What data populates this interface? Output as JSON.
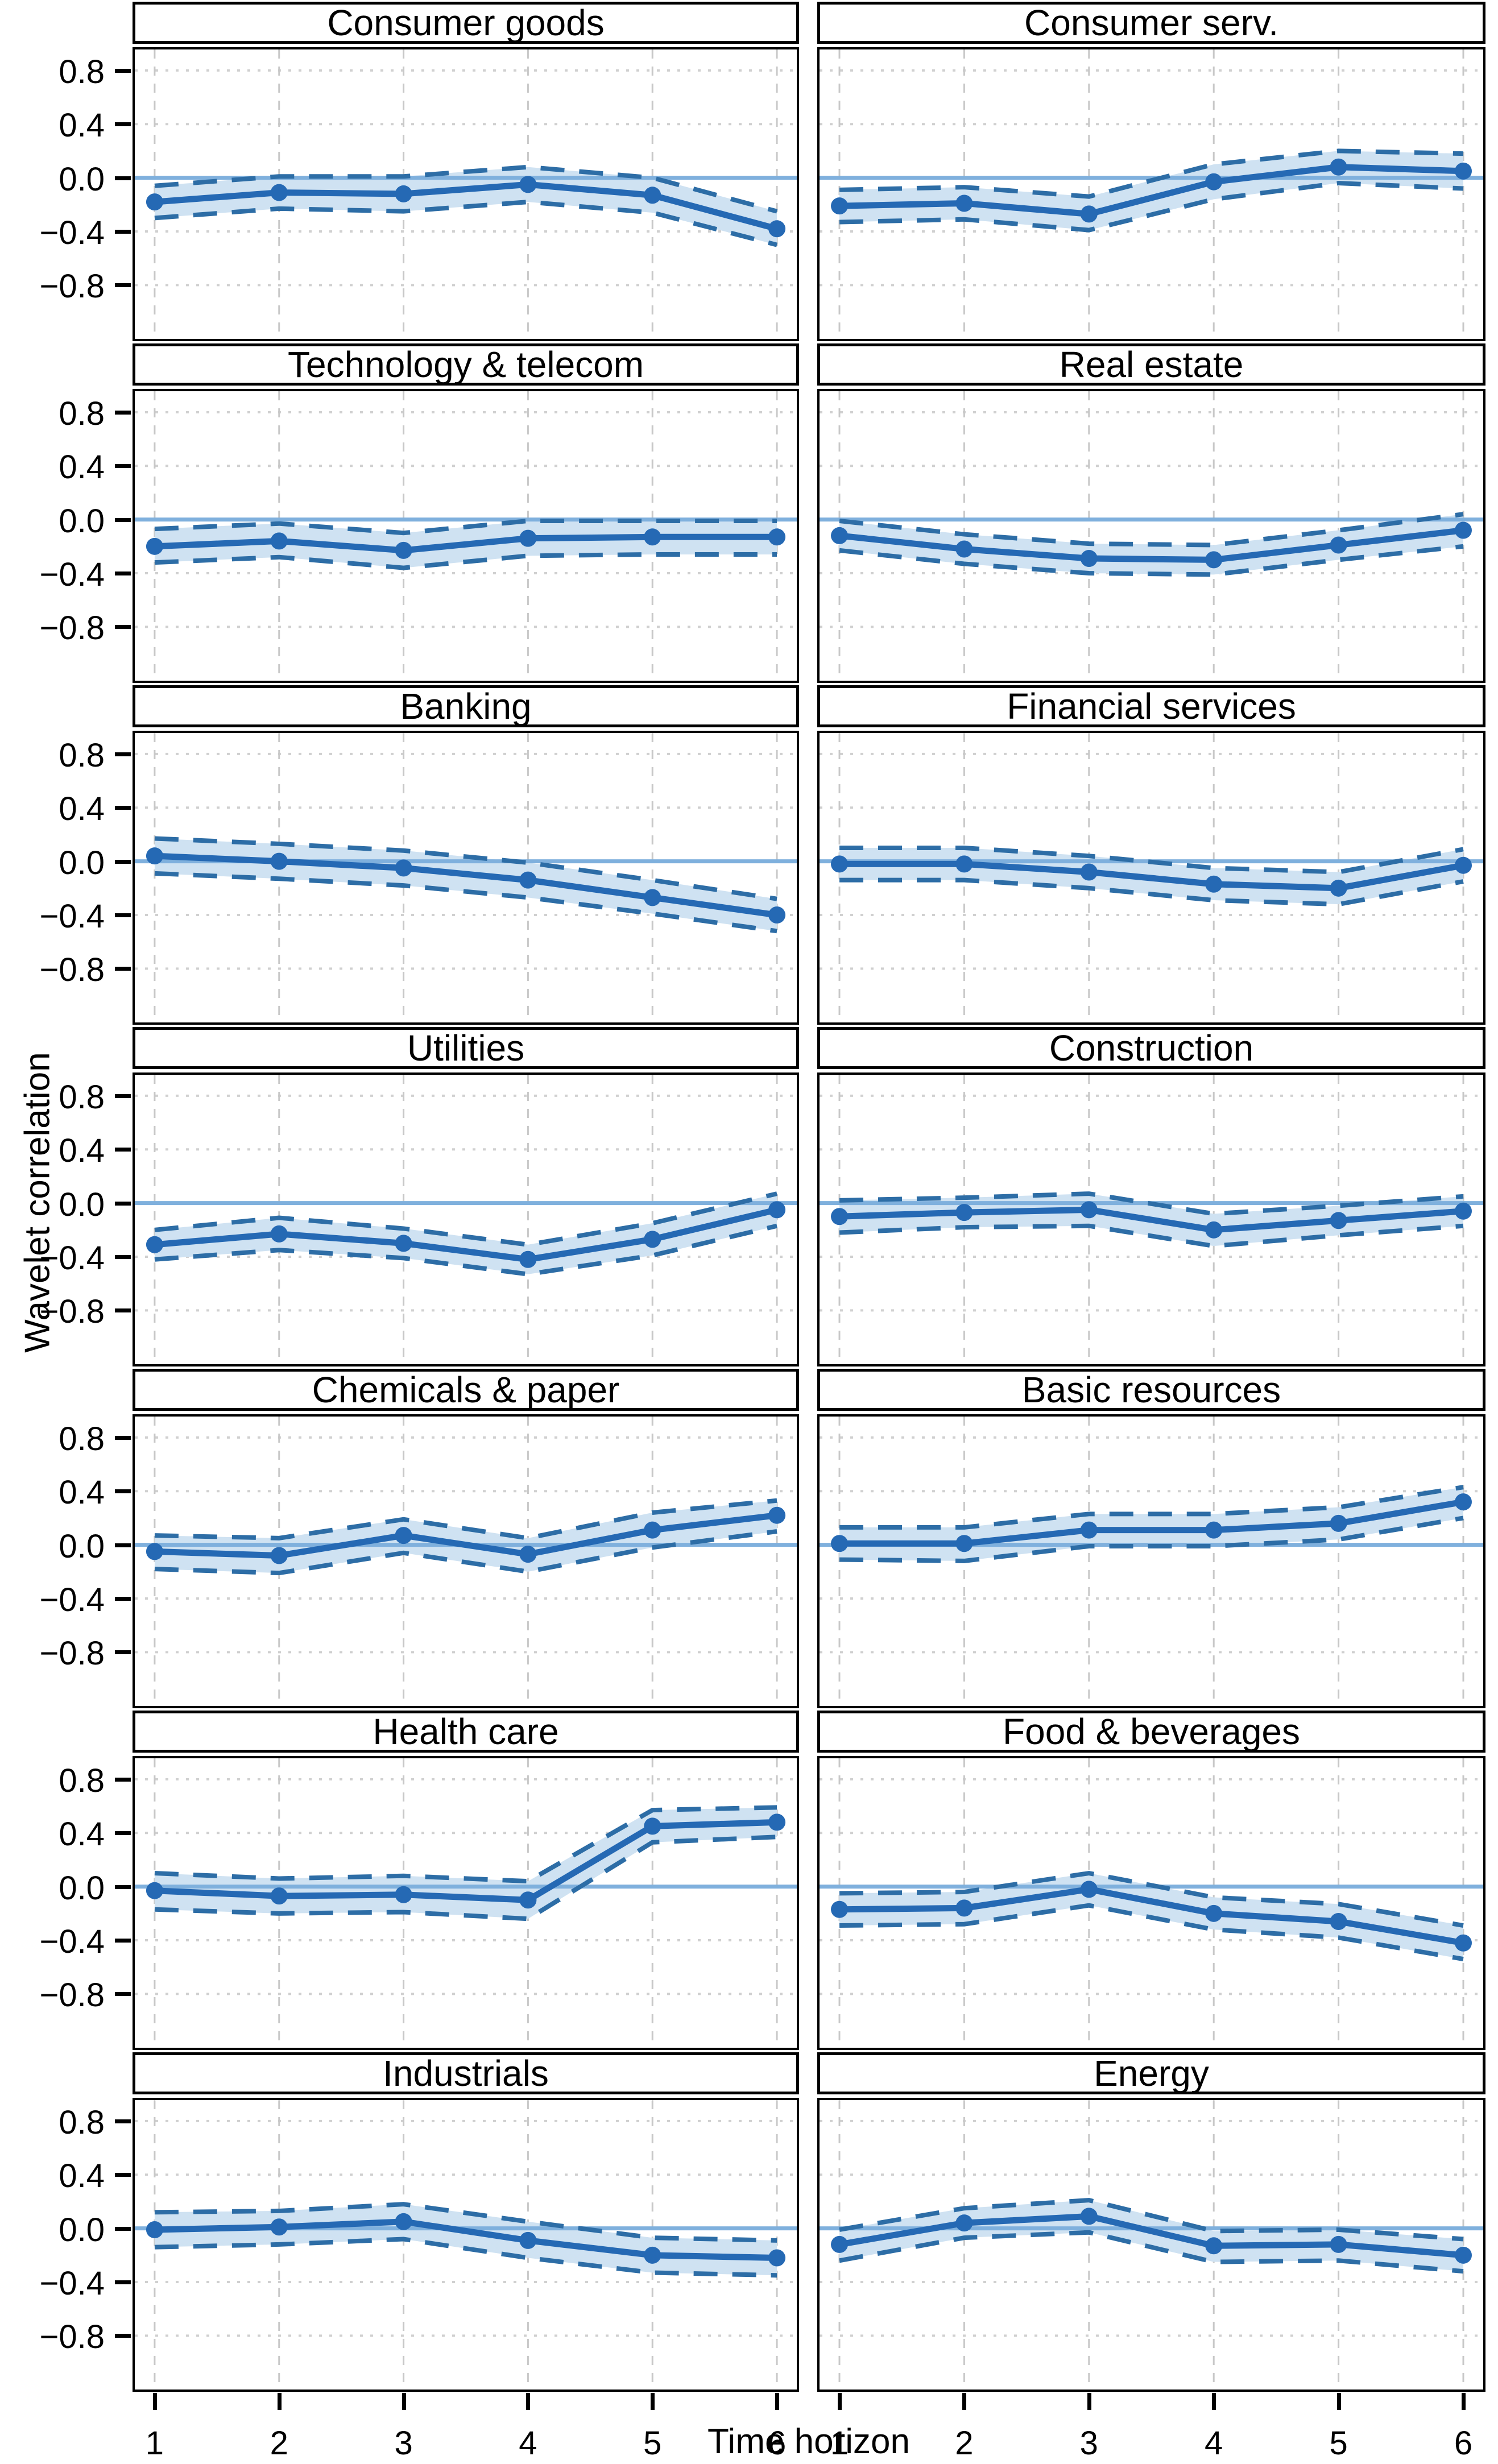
{
  "figure": {
    "ylabel": "Wavelet correlation",
    "xlabel": "Time horizon"
  },
  "axes": {
    "x_ticks": [
      1,
      2,
      3,
      4,
      5,
      6
    ],
    "x_tick_labels": [
      "1",
      "2",
      "3",
      "4",
      "5",
      "6"
    ],
    "y_ticks": [
      0.8,
      0.4,
      0.0,
      -0.4,
      -0.8
    ],
    "y_tick_labels": [
      "0.8",
      "0.4",
      "0.0",
      "−0.4",
      "−0.8"
    ]
  },
  "colors": {
    "line": "#2569b4",
    "marker": "#2569b4",
    "band_fill": "#cfe2f2",
    "band_edge": "#2d6da6",
    "zero_line": "#7fb0dd",
    "grid_v": "#c8c8c8",
    "grid_h": "#d0d0d0",
    "panel_border": "#000000",
    "strip_bg": "#ffffff",
    "text": "#000000"
  },
  "chart_data": {
    "type": "line",
    "layout": "facet-grid-7x2",
    "x": [
      1,
      2,
      3,
      4,
      5,
      6
    ],
    "xlabel": "Time horizon",
    "ylabel": "Wavelet correlation",
    "x_ticks": [
      1,
      2,
      3,
      4,
      5,
      6
    ],
    "y_ticks": [
      0.8,
      0.4,
      0.0,
      -0.4,
      -0.8
    ],
    "ylim": [
      -1.2,
      0.95
    ],
    "zero_line": 0.0,
    "grid": true,
    "panels": [
      {
        "title": "Consumer goods",
        "correlation": [
          -0.18,
          -0.11,
          -0.12,
          -0.05,
          -0.13,
          -0.38
        ],
        "ci_upper": [
          -0.06,
          0.01,
          0.01,
          0.08,
          0.0,
          -0.25
        ],
        "ci_lower": [
          -0.3,
          -0.23,
          -0.25,
          -0.18,
          -0.26,
          -0.5
        ]
      },
      {
        "title": "Consumer serv.",
        "correlation": [
          -0.21,
          -0.19,
          -0.27,
          -0.03,
          0.08,
          0.05
        ],
        "ci_upper": [
          -0.09,
          -0.07,
          -0.14,
          0.1,
          0.2,
          0.18
        ],
        "ci_lower": [
          -0.33,
          -0.31,
          -0.39,
          -0.16,
          -0.04,
          -0.08
        ]
      },
      {
        "title": "Technology & telecom",
        "correlation": [
          -0.2,
          -0.16,
          -0.23,
          -0.14,
          -0.13,
          -0.13
        ],
        "ci_upper": [
          -0.07,
          -0.03,
          -0.1,
          -0.01,
          -0.01,
          -0.01
        ],
        "ci_lower": [
          -0.32,
          -0.28,
          -0.36,
          -0.27,
          -0.26,
          -0.26
        ]
      },
      {
        "title": "Real estate",
        "correlation": [
          -0.12,
          -0.22,
          -0.29,
          -0.3,
          -0.19,
          -0.08
        ],
        "ci_upper": [
          -0.01,
          -0.11,
          -0.18,
          -0.19,
          -0.08,
          0.04
        ],
        "ci_lower": [
          -0.23,
          -0.33,
          -0.4,
          -0.41,
          -0.3,
          -0.2
        ]
      },
      {
        "title": "Banking",
        "correlation": [
          0.04,
          0.0,
          -0.05,
          -0.14,
          -0.27,
          -0.4
        ],
        "ci_upper": [
          0.17,
          0.13,
          0.08,
          -0.01,
          -0.14,
          -0.28
        ],
        "ci_lower": [
          -0.09,
          -0.13,
          -0.18,
          -0.27,
          -0.39,
          -0.52
        ]
      },
      {
        "title": "Financial services",
        "correlation": [
          -0.02,
          -0.02,
          -0.08,
          -0.17,
          -0.2,
          -0.03
        ],
        "ci_upper": [
          0.1,
          0.1,
          0.04,
          -0.05,
          -0.08,
          0.09
        ],
        "ci_lower": [
          -0.14,
          -0.14,
          -0.2,
          -0.29,
          -0.32,
          -0.15
        ]
      },
      {
        "title": "Utilities",
        "correlation": [
          -0.31,
          -0.23,
          -0.3,
          -0.42,
          -0.27,
          -0.05
        ],
        "ci_upper": [
          -0.2,
          -0.11,
          -0.19,
          -0.31,
          -0.15,
          0.07
        ],
        "ci_lower": [
          -0.42,
          -0.35,
          -0.41,
          -0.53,
          -0.39,
          -0.17
        ]
      },
      {
        "title": "Construction",
        "correlation": [
          -0.1,
          -0.07,
          -0.05,
          -0.2,
          -0.13,
          -0.06
        ],
        "ci_upper": [
          0.02,
          0.04,
          0.07,
          -0.08,
          -0.02,
          0.05
        ],
        "ci_lower": [
          -0.22,
          -0.18,
          -0.17,
          -0.32,
          -0.24,
          -0.17
        ]
      },
      {
        "title": "Chemicals & paper",
        "correlation": [
          -0.05,
          -0.08,
          0.07,
          -0.07,
          0.11,
          0.22
        ],
        "ci_upper": [
          0.07,
          0.05,
          0.19,
          0.05,
          0.24,
          0.33
        ],
        "ci_lower": [
          -0.18,
          -0.21,
          -0.06,
          -0.2,
          -0.02,
          0.1
        ]
      },
      {
        "title": "Basic resources",
        "correlation": [
          0.01,
          0.01,
          0.11,
          0.11,
          0.16,
          0.32
        ],
        "ci_upper": [
          0.13,
          0.13,
          0.23,
          0.23,
          0.28,
          0.43
        ],
        "ci_lower": [
          -0.11,
          -0.12,
          -0.01,
          -0.01,
          0.04,
          0.2
        ]
      },
      {
        "title": "Health care",
        "correlation": [
          -0.03,
          -0.07,
          -0.06,
          -0.1,
          0.45,
          0.48
        ],
        "ci_upper": [
          0.1,
          0.06,
          0.08,
          0.04,
          0.57,
          0.59
        ],
        "ci_lower": [
          -0.17,
          -0.2,
          -0.19,
          -0.24,
          0.33,
          0.37
        ]
      },
      {
        "title": "Food & beverages",
        "correlation": [
          -0.17,
          -0.16,
          -0.02,
          -0.2,
          -0.26,
          -0.42
        ],
        "ci_upper": [
          -0.05,
          -0.04,
          0.1,
          -0.08,
          -0.13,
          -0.29
        ],
        "ci_lower": [
          -0.29,
          -0.28,
          -0.14,
          -0.32,
          -0.38,
          -0.54
        ]
      },
      {
        "title": "Industrials",
        "correlation": [
          -0.01,
          0.01,
          0.05,
          -0.09,
          -0.2,
          -0.22
        ],
        "ci_upper": [
          0.12,
          0.13,
          0.18,
          0.05,
          -0.07,
          -0.09
        ],
        "ci_lower": [
          -0.14,
          -0.12,
          -0.08,
          -0.22,
          -0.33,
          -0.35
        ]
      },
      {
        "title": "Energy",
        "correlation": [
          -0.12,
          0.04,
          0.09,
          -0.13,
          -0.12,
          -0.2
        ],
        "ci_upper": [
          -0.01,
          0.15,
          0.21,
          -0.02,
          -0.01,
          -0.08
        ],
        "ci_lower": [
          -0.24,
          -0.07,
          -0.03,
          -0.25,
          -0.24,
          -0.32
        ]
      }
    ]
  }
}
